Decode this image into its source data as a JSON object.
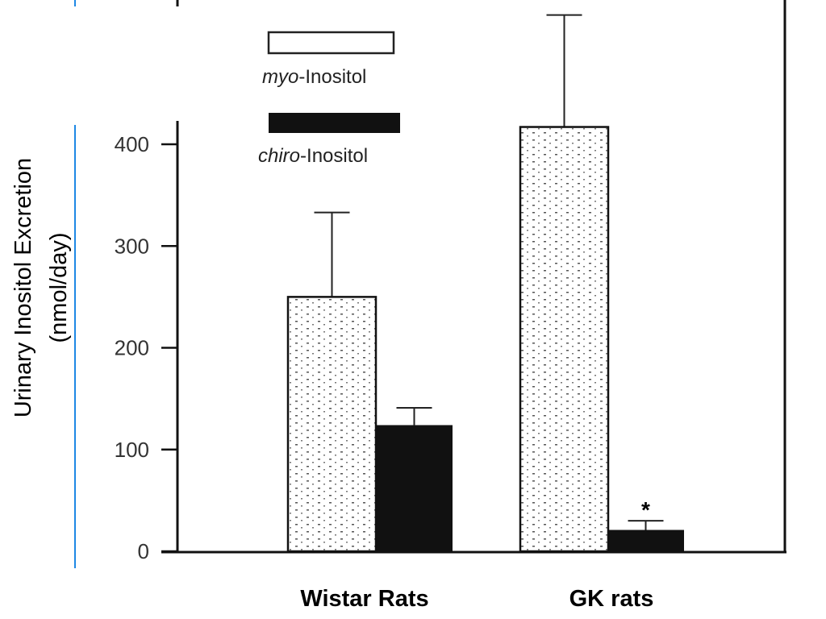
{
  "chart_data": {
    "type": "bar",
    "title": "",
    "xlabel": "",
    "ylabel": "Urinary Inositol Excretion",
    "ylabel_unit": "(nmol/day)",
    "ylim": [
      0,
      540
    ],
    "yticks": [
      0,
      100,
      200,
      300,
      400
    ],
    "categories": [
      "Wistar Rats",
      "GK rats"
    ],
    "series": [
      {
        "name_italic": "myo",
        "name_rest": "-Inositol",
        "name": "myo-Inositol",
        "color": "#ffffff",
        "values": [
          250,
          417
        ],
        "errors_upper": [
          333,
          527
        ]
      },
      {
        "name_italic": "chiro",
        "name_rest": "-Inositol",
        "name": "chiro-Inositol",
        "color": "#111111",
        "values": [
          124,
          21
        ],
        "errors_upper": [
          141,
          30
        ]
      }
    ],
    "annotations": [
      {
        "category": "GK rats",
        "series": "chiro-Inositol",
        "text": "*"
      }
    ],
    "grid": false,
    "legend_position": "top-left"
  }
}
